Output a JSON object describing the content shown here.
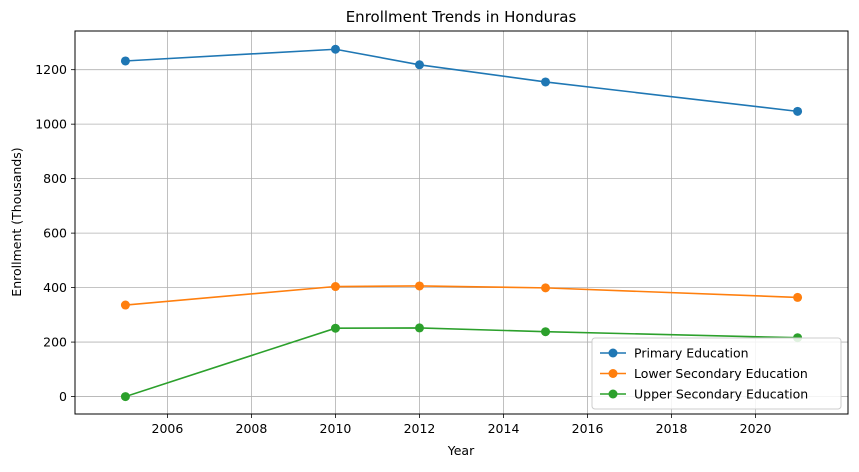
{
  "chart_data": {
    "type": "line",
    "title": "Enrollment Trends in Honduras",
    "xlabel": "Year",
    "ylabel": "Enrollment (Thousands)",
    "x": [
      2005,
      2010,
      2012,
      2015,
      2021
    ],
    "xlim": [
      2003.8,
      2022.2
    ],
    "ylim": [
      -64,
      1342
    ],
    "xticks": [
      2006,
      2008,
      2010,
      2012,
      2014,
      2016,
      2018,
      2020
    ],
    "yticks": [
      0,
      200,
      400,
      600,
      800,
      1000,
      1200
    ],
    "grid": true,
    "legend_position": "lower-right",
    "series": [
      {
        "name": "Primary Education",
        "color": "#1f77b4",
        "values": [
          1232,
          1275,
          1218,
          1155,
          1047
        ]
      },
      {
        "name": "Lower Secondary Education",
        "color": "#ff7f0e",
        "values": [
          336,
          404,
          406,
          399,
          364
        ]
      },
      {
        "name": "Upper Secondary Education",
        "color": "#2ca02c",
        "values": [
          0,
          251,
          252,
          238,
          216
        ]
      }
    ]
  }
}
